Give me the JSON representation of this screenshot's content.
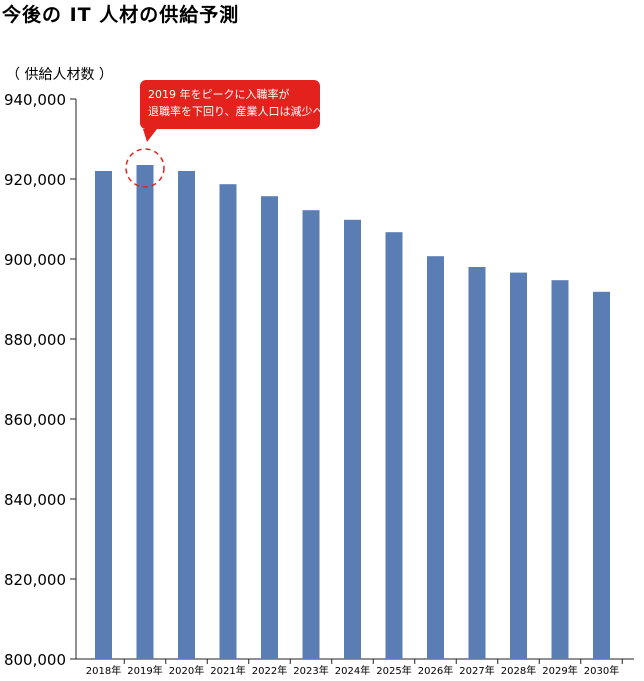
{
  "title": "今後の IT 人材の供給予測",
  "y_unit_label": "（ 供給人材数 ）",
  "callout": {
    "line1": "2019 年をピークに入職率が",
    "line2": "退職率を下回り、産業人口は減少へ",
    "color": "#e3221e"
  },
  "chart_data": {
    "type": "bar",
    "title": "",
    "xlabel": "",
    "ylabel": "（ 供給人材数 ）",
    "categories": [
      "2018年",
      "2019年",
      "2020年",
      "2021年",
      "2022年",
      "2023年",
      "2024年",
      "2025年",
      "2026年",
      "2027年",
      "2028年",
      "2029年",
      "2030年"
    ],
    "values": [
      922000,
      923500,
      922000,
      918700,
      915700,
      912200,
      909800,
      906700,
      900700,
      898000,
      896600,
      894700,
      891800
    ],
    "ylim": [
      800000,
      940000
    ],
    "yticks": [
      800000,
      820000,
      840000,
      860000,
      880000,
      900000,
      920000,
      940000
    ],
    "ytick_labels": [
      "800,000",
      "820,000",
      "840,000",
      "860,000",
      "880,000",
      "900,000",
      "920,000",
      "940,000"
    ],
    "bar_color": "#5a7db3",
    "highlight_category": "2019年",
    "highlight_color": "#e3221e",
    "grid": false
  }
}
